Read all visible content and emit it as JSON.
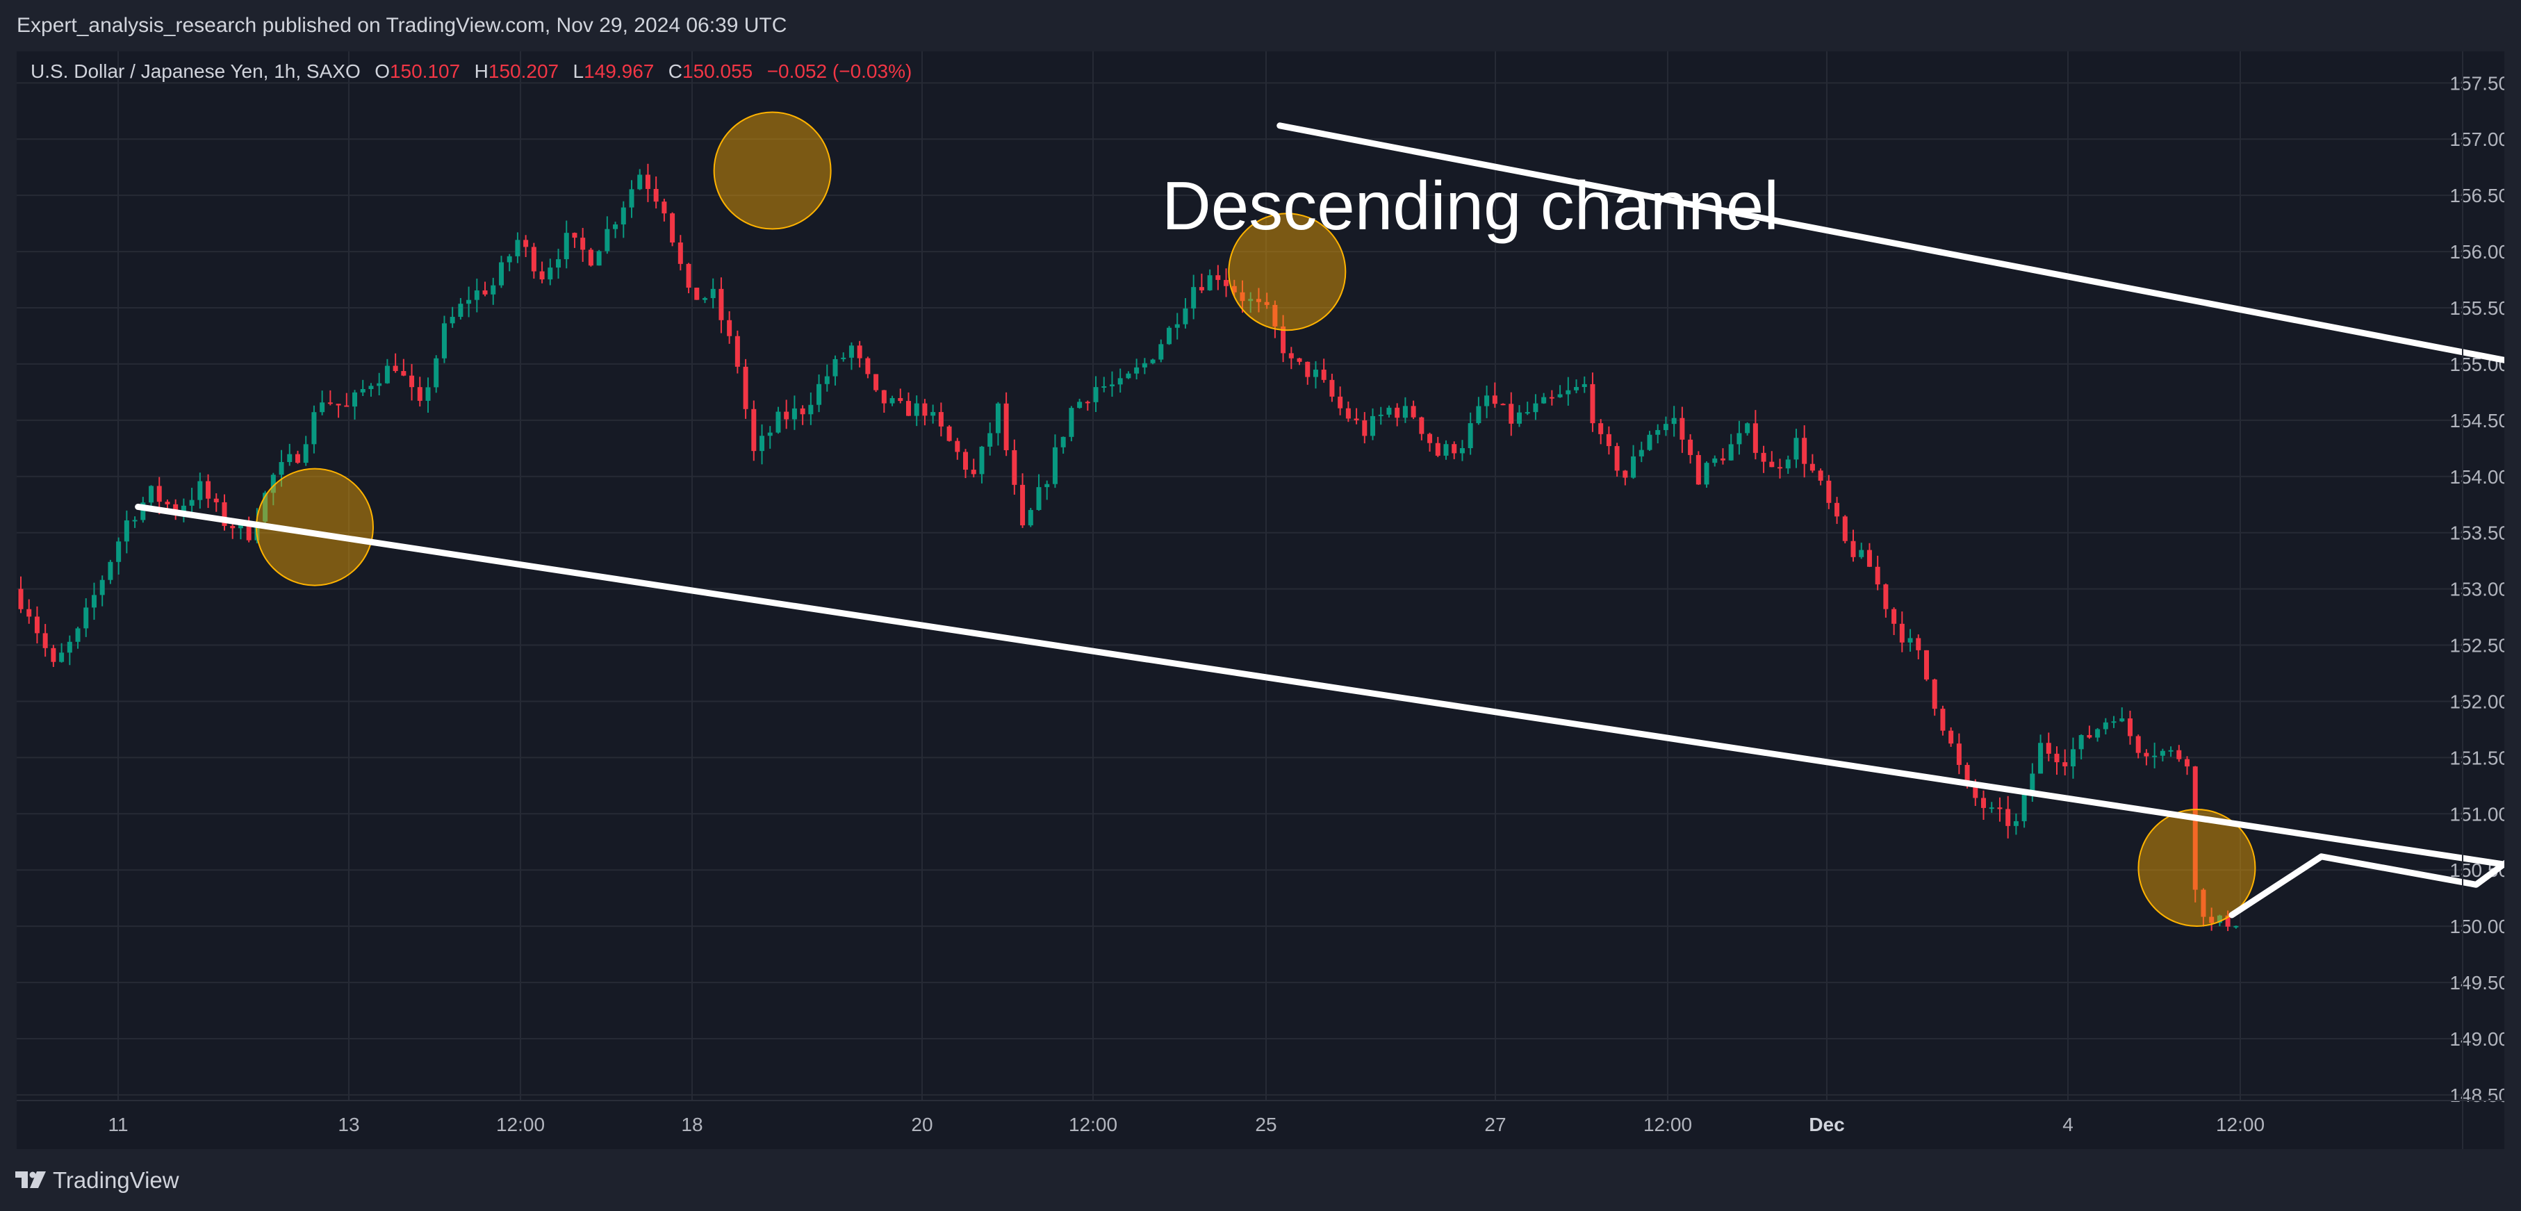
{
  "header": {
    "publisher_text": "Expert_analysis_research published on TradingView.com, Nov 29, 2024 06:39 UTC"
  },
  "legend": {
    "symbol": "U.S. Dollar / Japanese Yen, 1h, SAXO",
    "o_label": "O",
    "o_value": "150.107",
    "h_label": "H",
    "h_value": "150.207",
    "l_label": "L",
    "l_value": "149.967",
    "c_label": "C",
    "c_value": "150.055",
    "change": "−0.052 (−0.03%)"
  },
  "footer": {
    "brand": "TradingView"
  },
  "colors": {
    "background": "#161a25",
    "grid": "#262a35",
    "up": "#089981",
    "down": "#f23645",
    "axis_text": "#b2b5be",
    "annotation": "#ffffff",
    "circle_fill": "#f7a600",
    "circle_stroke": "#ffb300"
  },
  "chart_data": {
    "type": "candlestick",
    "symbol": "USDJPY",
    "timeframe": "1h",
    "y_axis": {
      "ylim": [
        148.45,
        157.78
      ],
      "ticks": [
        "148.500",
        "149.000",
        "149.500",
        "150.000",
        "150.500",
        "151.000",
        "151.500",
        "152.000",
        "152.500",
        "153.000",
        "153.500",
        "154.000",
        "154.500",
        "155.000",
        "155.500",
        "156.000",
        "156.500",
        "157.000",
        "157.500"
      ]
    },
    "x_axis": {
      "ticks": [
        "11",
        "13",
        "12:00",
        "18",
        "20",
        "12:00",
        "25",
        "27",
        "12:00",
        "Dec",
        "4",
        "12:00"
      ],
      "bold_ticks": [
        "Dec"
      ]
    },
    "price_path": [
      [
        0,
        153.0
      ],
      [
        2,
        152.8
      ],
      [
        5,
        152.3
      ],
      [
        8,
        152.6
      ],
      [
        11,
        153.1
      ],
      [
        14,
        153.6
      ],
      [
        17,
        153.85
      ],
      [
        20,
        153.7
      ],
      [
        23,
        153.9
      ],
      [
        26,
        153.6
      ],
      [
        29,
        153.5
      ],
      [
        32,
        154.0
      ],
      [
        35,
        154.2
      ],
      [
        38,
        154.7
      ],
      [
        41,
        154.6
      ],
      [
        44,
        154.85
      ],
      [
        47,
        155.0
      ],
      [
        50,
        154.6
      ],
      [
        53,
        155.3
      ],
      [
        56,
        155.6
      ],
      [
        59,
        155.7
      ],
      [
        62,
        156.1
      ],
      [
        65,
        155.8
      ],
      [
        68,
        156.1
      ],
      [
        71,
        155.95
      ],
      [
        74,
        156.3
      ],
      [
        77,
        156.7
      ],
      [
        80,
        156.4
      ],
      [
        83,
        155.6
      ],
      [
        86,
        155.6
      ],
      [
        89,
        155.0
      ],
      [
        91,
        154.2
      ],
      [
        94,
        154.5
      ],
      [
        97,
        154.6
      ],
      [
        100,
        154.9
      ],
      [
        103,
        155.15
      ],
      [
        106,
        154.7
      ],
      [
        109,
        154.6
      ],
      [
        112,
        154.6
      ],
      [
        115,
        154.3
      ],
      [
        118,
        154.0
      ],
      [
        121,
        154.6
      ],
      [
        124,
        153.5
      ],
      [
        127,
        154.0
      ],
      [
        130,
        154.6
      ],
      [
        133,
        154.8
      ],
      [
        136,
        154.8
      ],
      [
        139,
        155.0
      ],
      [
        142,
        155.3
      ],
      [
        145,
        155.7
      ],
      [
        148,
        155.8
      ],
      [
        151,
        155.6
      ],
      [
        154,
        155.45
      ],
      [
        157,
        155.0
      ],
      [
        160,
        154.9
      ],
      [
        163,
        154.6
      ],
      [
        166,
        154.4
      ],
      [
        169,
        154.6
      ],
      [
        172,
        154.55
      ],
      [
        175,
        154.2
      ],
      [
        178,
        154.3
      ],
      [
        181,
        154.7
      ],
      [
        184,
        154.5
      ],
      [
        187,
        154.6
      ],
      [
        190,
        154.7
      ],
      [
        193,
        154.8
      ],
      [
        195,
        154.3
      ],
      [
        198,
        154.0
      ],
      [
        201,
        154.4
      ],
      [
        204,
        154.5
      ],
      [
        207,
        154.0
      ],
      [
        210,
        154.2
      ],
      [
        213,
        154.4
      ],
      [
        216,
        154.05
      ],
      [
        219,
        154.3
      ],
      [
        222,
        153.9
      ],
      [
        225,
        153.4
      ],
      [
        228,
        153.2
      ],
      [
        231,
        152.7
      ],
      [
        234,
        152.4
      ],
      [
        237,
        151.8
      ],
      [
        240,
        151.2
      ],
      [
        243,
        151.0
      ],
      [
        246,
        150.9
      ],
      [
        249,
        151.6
      ],
      [
        252,
        151.5
      ],
      [
        255,
        151.7
      ],
      [
        258,
        151.9
      ],
      [
        261,
        151.6
      ],
      [
        264,
        151.55
      ],
      [
        267,
        151.5
      ],
      [
        268,
        150.3
      ],
      [
        270,
        150.0
      ],
      [
        272,
        150.05
      ]
    ],
    "annotations": {
      "title": "Descending channel",
      "upper_channel": [
        [
          155.1,
          157.12
        ],
        [
          469.5,
          152.76
        ]
      ],
      "lower_channel": [
        [
          14.9,
          153.73
        ],
        [
          418.7,
          149.31
        ]
      ],
      "highlight_circles": [
        [
          36.6,
          153.55
        ],
        [
          92.8,
          156.72
        ],
        [
          156.0,
          155.82
        ],
        [
          267.7,
          150.52
        ]
      ],
      "projection": [
        [
          272,
          150.1
        ],
        [
          283,
          150.62
        ],
        [
          302,
          150.37
        ],
        [
          325,
          151.6
        ]
      ]
    }
  }
}
